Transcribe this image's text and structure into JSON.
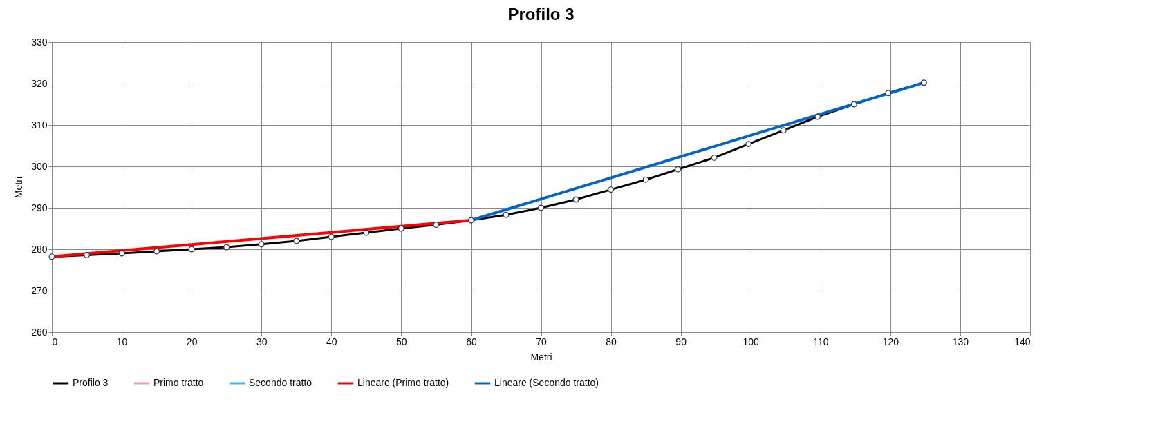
{
  "chart_data": {
    "type": "line",
    "title": "Profilo 3",
    "xlabel": "Metri",
    "ylabel": "Metri",
    "xlim": [
      0,
      140
    ],
    "xticks": [
      0,
      10,
      20,
      30,
      40,
      50,
      60,
      70,
      80,
      90,
      100,
      110,
      120,
      130,
      140
    ],
    "ylim": [
      260,
      330
    ],
    "yticks": [
      260,
      270,
      280,
      290,
      300,
      310,
      320,
      330
    ],
    "grid": true,
    "legend": "bottom",
    "x": [
      0,
      5,
      10,
      15,
      20,
      25,
      30,
      35,
      40,
      45,
      50,
      55,
      60,
      65,
      70,
      75,
      80,
      85,
      89.6,
      94.8,
      99.7,
      104.7,
      109.6,
      114.8,
      119.7,
      124.8
    ],
    "series": [
      {
        "name": "Profilo 3",
        "color": "#000000",
        "marker": "circle",
        "values": [
          278.2,
          278.6,
          279.0,
          279.5,
          280.0,
          280.5,
          281.2,
          282.0,
          283.0,
          284.0,
          285.0,
          285.9,
          287.0,
          288.3,
          290.0,
          292.0,
          294.4,
          296.8,
          299.3,
          302.1,
          305.4,
          308.7,
          312.0,
          315.0,
          317.7,
          320.2
        ]
      },
      {
        "name": "Primo tratto",
        "color": "#e6a0a0",
        "values": [
          null,
          null,
          null,
          null,
          null,
          null,
          null,
          null,
          null,
          null,
          null,
          null,
          null,
          null,
          null,
          null,
          null,
          null,
          null,
          null,
          null,
          null,
          null,
          null,
          null,
          null
        ]
      },
      {
        "name": "Secondo tratto",
        "color": "#33bbee",
        "values": [
          null,
          null,
          null,
          null,
          null,
          null,
          null,
          null,
          null,
          null,
          null,
          null,
          null,
          null,
          null,
          null,
          null,
          null,
          null,
          null,
          null,
          null,
          null,
          null,
          null,
          null
        ]
      },
      {
        "name": "Lineare (Primo tratto)",
        "color": "#ff0000",
        "x": [
          0,
          60
        ],
        "values": [
          278.2,
          287.0
        ]
      },
      {
        "name": "Lineare (Secondo tratto)",
        "color": "#0066cc",
        "x": [
          60,
          124.8
        ],
        "values": [
          287.0,
          320.2
        ]
      }
    ]
  }
}
